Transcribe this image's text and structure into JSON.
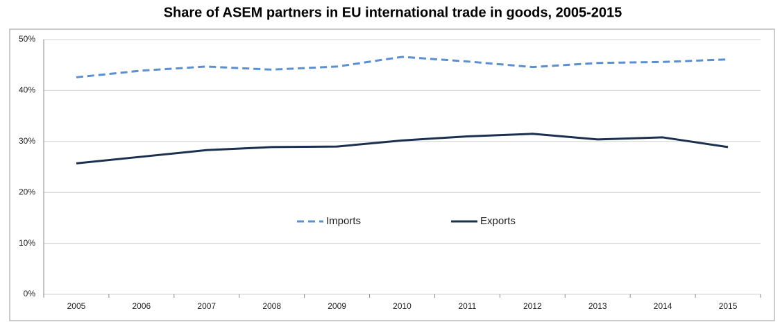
{
  "chart_data": {
    "type": "line",
    "title": "Share of ASEM partners in EU international trade in goods, 2005-2015",
    "categories": [
      "2005",
      "2006",
      "2007",
      "2008",
      "2009",
      "2010",
      "2011",
      "2012",
      "2013",
      "2014",
      "2015"
    ],
    "series": [
      {
        "name": "Imports",
        "color": "#5b8fd0",
        "dashed": true,
        "values": [
          42.6,
          43.9,
          44.7,
          44.1,
          44.7,
          46.6,
          45.7,
          44.6,
          45.4,
          45.6,
          46.1
        ]
      },
      {
        "name": "Exports",
        "color": "#1b3050",
        "dashed": false,
        "values": [
          25.7,
          27.0,
          28.3,
          28.9,
          29.0,
          30.2,
          31.0,
          31.5,
          30.4,
          30.8,
          28.9
        ]
      }
    ],
    "ylim": [
      0,
      50
    ],
    "yticks": [
      {
        "value": 0,
        "label": "0%"
      },
      {
        "value": 10,
        "label": "10%"
      },
      {
        "value": 20,
        "label": "20%"
      },
      {
        "value": 30,
        "label": "30%"
      },
      {
        "value": 40,
        "label": "40%"
      },
      {
        "value": 50,
        "label": "50%"
      }
    ],
    "grid": true,
    "legend": "center"
  }
}
